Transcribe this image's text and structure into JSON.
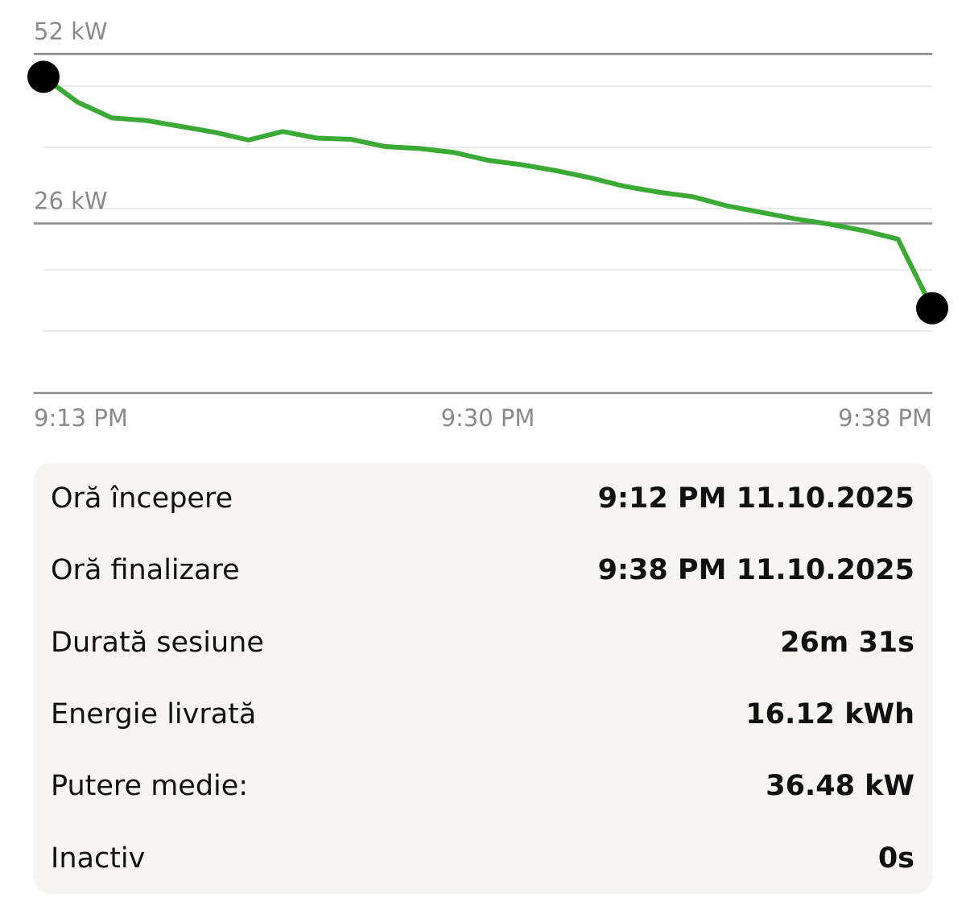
{
  "chart_data": {
    "type": "line",
    "categories": [
      "9:13 PM",
      null,
      null,
      null,
      null,
      null,
      null,
      null,
      null,
      null,
      null,
      null,
      null,
      "9:30 PM",
      null,
      null,
      null,
      null,
      null,
      null,
      null,
      null,
      null,
      null,
      null,
      null,
      "9:38 PM"
    ],
    "series": [
      {
        "color": "#3aaa35",
        "values": [
          48.5,
          44.6,
          42.2,
          41.8,
          40.9,
          40.0,
          38.8,
          40.1,
          39.1,
          38.9,
          37.8,
          37.5,
          36.9,
          35.7,
          35.0,
          34.1,
          33.0,
          31.7,
          30.8,
          30.1,
          28.7,
          27.7,
          26.7,
          25.9,
          24.9,
          23.6,
          13.0
        ]
      }
    ],
    "ylim": [
      0,
      52
    ],
    "yticks": [
      0,
      {
        "value": 26,
        "label": "26 kW"
      },
      {
        "value": 52,
        "label": "52 kW"
      }
    ],
    "grid": true
  },
  "details": {
    "rows": [
      [
        "Oră începere",
        "9:12 PM 11.10.2025"
      ],
      [
        "Oră finalizare",
        "9:38 PM 11.10.2025"
      ],
      [
        "Durată sesiune",
        "26m 31s"
      ],
      [
        "Energie livrată",
        "16.12 kWh"
      ],
      [
        "Putere medie:",
        "36.48 kW"
      ],
      [
        "Inactiv",
        "0s"
      ]
    ]
  }
}
